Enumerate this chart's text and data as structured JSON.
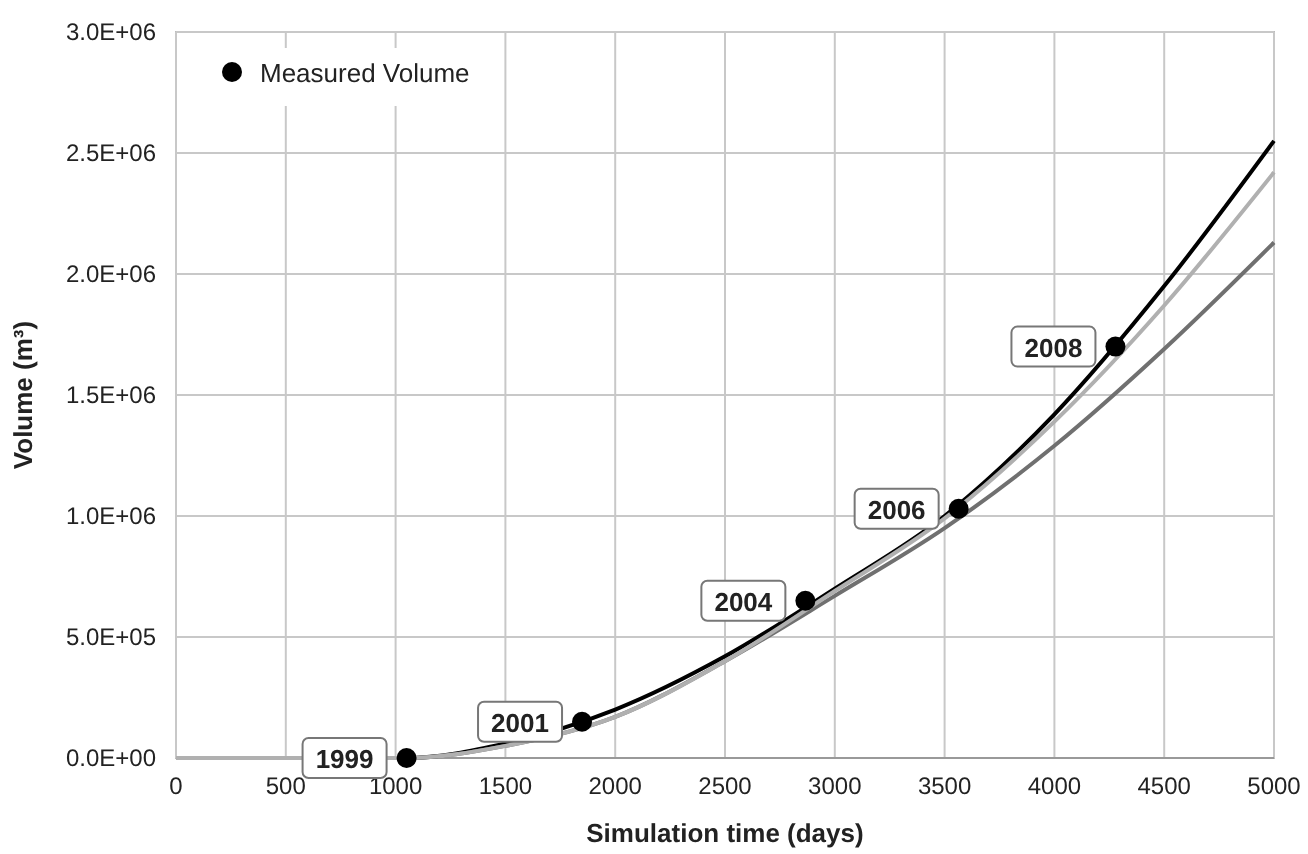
{
  "chart_data": {
    "type": "line",
    "xlabel": "Simulation time (days)",
    "ylabel": "Volume (m³)",
    "xlim": [
      0,
      5000
    ],
    "xticks": [
      0,
      500,
      1000,
      1500,
      2000,
      2500,
      3000,
      3500,
      4000,
      4500,
      5000
    ],
    "ylim": [
      0,
      3000000
    ],
    "yticks": [
      {
        "value": 0,
        "label": "0.0E+00"
      },
      {
        "value": 500000,
        "label": "5.0E+05"
      },
      {
        "value": 1000000,
        "label": "1.0E+06"
      },
      {
        "value": 1500000,
        "label": "1.5E+06"
      },
      {
        "value": 2000000,
        "label": "2.0E+06"
      },
      {
        "value": 2500000,
        "label": "2.5E+06"
      },
      {
        "value": 3000000,
        "label": "3.0E+06"
      }
    ],
    "grid": true,
    "legend": "top left",
    "series": [
      {
        "name": "Measured Volume",
        "type": "scatter",
        "marker": "circle",
        "color": "#000000",
        "x": [
          1050,
          1849,
          2866,
          3564,
          4278
        ],
        "values": [
          0,
          150000,
          650000,
          1030000,
          1700000
        ]
      },
      {
        "color": "#000000",
        "x": [
          0,
          1000,
          1050,
          1500,
          2000,
          2500,
          3000,
          3500,
          4000,
          4500,
          5000
        ],
        "values": [
          0,
          0,
          0,
          60000,
          200000,
          420000,
          700000,
          1000000,
          1420000,
          1950000,
          2550000
        ]
      },
      {
        "color": "#707070",
        "x": [
          0,
          1000,
          1050,
          1500,
          2000,
          2500,
          3000,
          3500,
          4000,
          4500,
          5000
        ],
        "values": [
          0,
          0,
          0,
          50000,
          170000,
          400000,
          670000,
          950000,
          1290000,
          1690000,
          2130000
        ]
      },
      {
        "color": "#b0b0b0",
        "x": [
          0,
          1000,
          1050,
          1500,
          2000,
          2500,
          3000,
          3500,
          4000,
          4500,
          5000
        ],
        "values": [
          0,
          0,
          0,
          50000,
          170000,
          400000,
          690000,
          990000,
          1390000,
          1870000,
          2420000
        ]
      }
    ],
    "annotations": [
      {
        "text": "1999",
        "x": 1050,
        "y": 0
      },
      {
        "text": "2001",
        "x": 1849,
        "y": 150000
      },
      {
        "text": "2004",
        "x": 2866,
        "y": 650000
      },
      {
        "text": "2006",
        "x": 3564,
        "y": 1030000
      },
      {
        "text": "2008",
        "x": 4278,
        "y": 1700000
      }
    ]
  }
}
